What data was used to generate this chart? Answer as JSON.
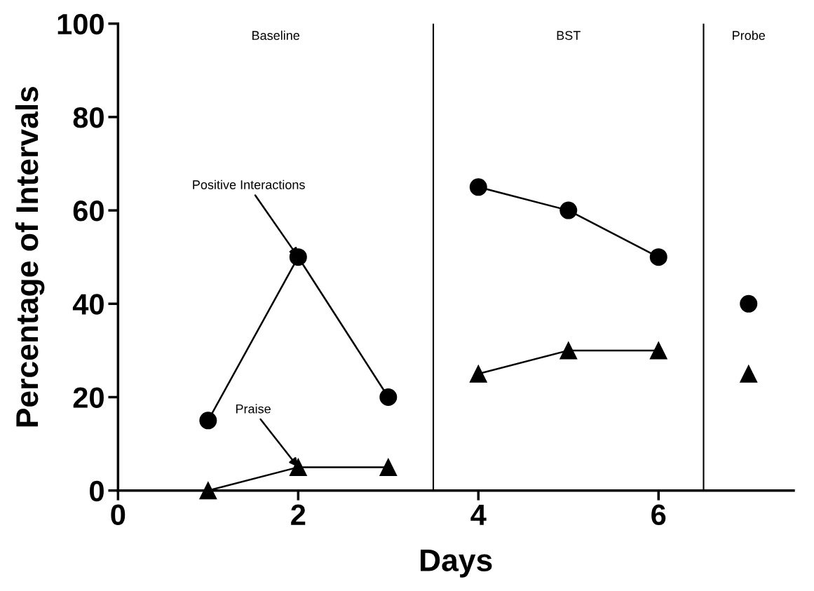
{
  "chart_data": {
    "type": "line",
    "xlabel": "Days",
    "ylabel": "Percentage of Intervals",
    "x": [
      1,
      2,
      3,
      3.5,
      4,
      5,
      6,
      6.5,
      7
    ],
    "series": [
      {
        "color": "#000000",
        "marker": "circle",
        "values": [
          15,
          50,
          20,
          null,
          65,
          60,
          50,
          null,
          40
        ]
      },
      {
        "color": "#000000",
        "marker": "triangle",
        "values": [
          0,
          5,
          5,
          null,
          25,
          30,
          30,
          null,
          25
        ]
      }
    ],
    "xlim": [
      0,
      7.5
    ],
    "xticks": [
      0,
      2,
      4,
      6
    ],
    "ylim": [
      0,
      100
    ],
    "yticks": [
      0,
      20,
      40,
      60,
      80,
      100
    ],
    "grid": false,
    "line_style": "solid",
    "ref_lines": [
      {
        "axis": "x",
        "value": 3.5,
        "color": "#000000"
      },
      {
        "axis": "x",
        "value": 6.5,
        "color": "#000000"
      }
    ],
    "annotations": [
      "Baseline",
      "BST",
      "Probe",
      {
        "text": "Positive Interactions",
        "x": 2,
        "y": 50
      },
      {
        "text": "Praise",
        "x": 2,
        "y": 5
      }
    ]
  }
}
